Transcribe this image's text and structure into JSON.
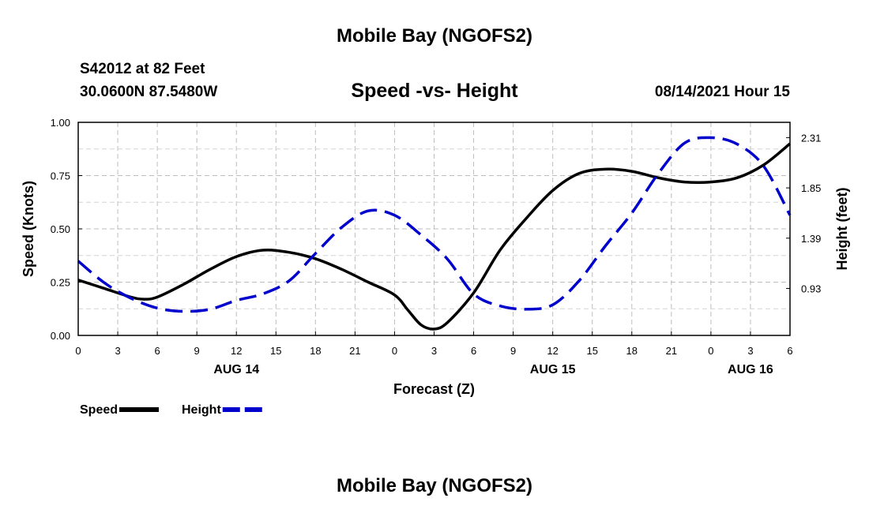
{
  "header": {
    "title": "Mobile Bay (NGOFS2)",
    "station": "S42012 at 82 Feet",
    "coordinates": "30.0600N  87.5480W",
    "chart_title": "Speed -vs- Height",
    "date": "08/14/2021 Hour 15",
    "footer_title": "Mobile Bay (NGOFS2)"
  },
  "chart_data": {
    "type": "line",
    "title": "Speed -vs- Height",
    "xlabel": "Forecast (Z)",
    "ylabel": "Speed (Knots)",
    "y2label": "Height (feet)",
    "x_hours": [
      0,
      3,
      6,
      9,
      12,
      15,
      18,
      21,
      24,
      27,
      30,
      33,
      36,
      39,
      42,
      45,
      48,
      51,
      54
    ],
    "x_tick_labels": [
      "0",
      "3",
      "6",
      "9",
      "12",
      "15",
      "18",
      "21",
      "0",
      "3",
      "6",
      "9",
      "12",
      "15",
      "18",
      "21",
      "0",
      "3",
      "6"
    ],
    "date_labels": [
      {
        "label": "AUG 14",
        "hour": 12
      },
      {
        "label": "AUG 15",
        "hour": 36
      },
      {
        "label": "AUG 16",
        "hour": 51
      }
    ],
    "xlim": [
      0,
      54
    ],
    "ylim": [
      0,
      1.0
    ],
    "y_ticks": [
      "0.00",
      "0.25",
      "0.50",
      "0.75",
      "1.00"
    ],
    "y2lim": [
      0.5,
      2.45
    ],
    "y2_ticks": [
      "0.93",
      "1.39",
      "1.85",
      "2.31"
    ],
    "grid": true,
    "legend_position": "bottom-left",
    "series": [
      {
        "name": "Speed",
        "axis": "left",
        "color": "#000000",
        "style": "solid",
        "x": [
          0,
          2,
          4,
          5,
          6,
          8,
          10,
          12,
          14,
          16,
          18,
          20,
          22,
          24,
          25,
          26,
          27,
          28,
          30,
          32,
          34,
          36,
          38,
          40,
          42,
          44,
          46,
          48,
          50,
          52,
          54
        ],
        "y": [
          0.26,
          0.22,
          0.18,
          0.17,
          0.18,
          0.24,
          0.31,
          0.37,
          0.4,
          0.39,
          0.36,
          0.31,
          0.25,
          0.19,
          0.12,
          0.05,
          0.03,
          0.06,
          0.2,
          0.4,
          0.55,
          0.68,
          0.76,
          0.78,
          0.77,
          0.74,
          0.72,
          0.72,
          0.74,
          0.8,
          0.9
        ]
      },
      {
        "name": "Height",
        "axis": "right",
        "color": "#0000cc",
        "style": "dashed",
        "x": [
          0,
          2,
          4,
          6,
          8,
          10,
          12,
          14,
          16,
          18,
          20,
          22,
          24,
          26,
          28,
          30,
          32,
          34,
          36,
          38,
          40,
          42,
          44,
          46,
          48,
          50,
          52,
          54
        ],
        "y": [
          1.18,
          0.98,
          0.84,
          0.75,
          0.72,
          0.74,
          0.82,
          0.88,
          1.0,
          1.25,
          1.49,
          1.64,
          1.6,
          1.42,
          1.2,
          0.88,
          0.77,
          0.74,
          0.78,
          1.0,
          1.32,
          1.62,
          1.98,
          2.26,
          2.31,
          2.25,
          2.05,
          1.6
        ]
      }
    ]
  }
}
